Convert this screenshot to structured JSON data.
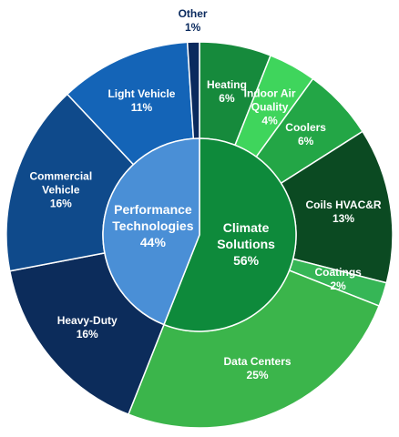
{
  "chart_data": {
    "type": "sunburst",
    "inner": {
      "categories": [
        "Climate Solutions",
        "Performance Technologies"
      ],
      "values": [
        56,
        44
      ],
      "value_labels": [
        "56%",
        "44%"
      ],
      "colors": [
        "#0e8a3b",
        "#4a8fd6"
      ]
    },
    "outer": {
      "categories": [
        "Heating",
        "Indoor Air Quality",
        "Coolers",
        "Coils HVAC&R",
        "Coatings",
        "Data Centers",
        "Heavy-Duty",
        "Commercial Vehicle",
        "Light Vehicle",
        "Other"
      ],
      "values": [
        6,
        4,
        6,
        13,
        2,
        25,
        16,
        16,
        11,
        1
      ],
      "value_labels": [
        "6%",
        "4%",
        "6%",
        "13%",
        "2%",
        "25%",
        "16%",
        "16%",
        "11%",
        "1%"
      ],
      "colors": [
        "#168a3c",
        "#3fd55c",
        "#23a646",
        "#0b4a22",
        "#36b656",
        "#3bb54b",
        "#0c2c5b",
        "#0f4a8b",
        "#1464b7",
        "#0a2a5e"
      ]
    }
  }
}
